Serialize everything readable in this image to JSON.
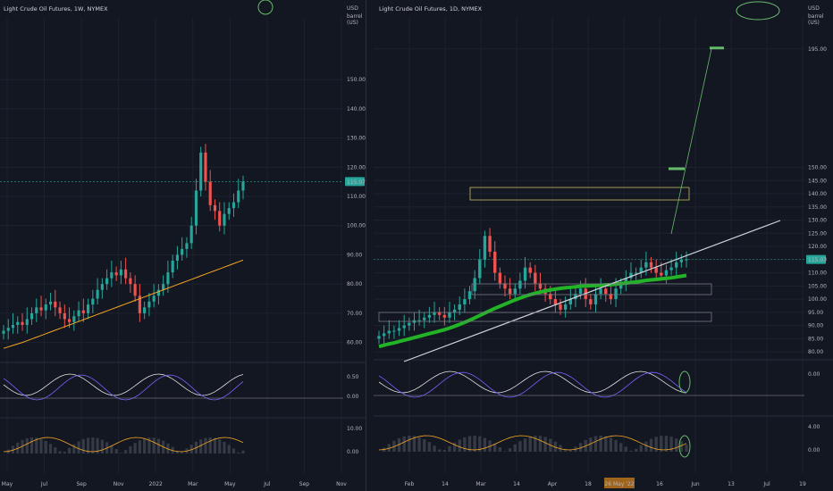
{
  "colors": {
    "background": "#131722",
    "grid": "#1e222d",
    "up": "#26a69a",
    "down": "#ef5350",
    "ma": "#f5a623",
    "trend_ma": "#22b326",
    "annotation_green": "#66bb6a",
    "price_tag": "#26a69a",
    "zone": "#c9b860",
    "macd": "#e0e0e0",
    "signal": "#7b61ff"
  },
  "left": {
    "title": "Light Crude Oil Futures, 1W, NYMEX",
    "currency": "USD",
    "unit": "barrel (US)",
    "price_tag": "115.07"
  },
  "right": {
    "title": "Light Crude Oil Futures, 1D, NYMEX",
    "currency": "USD",
    "unit": "barrel (US)",
    "price_tag": "115.07",
    "date_highlight": "26 May '22"
  },
  "chart_data": [
    {
      "type": "candlestick",
      "interval": "1W",
      "ylim": [
        55,
        165
      ],
      "y_ticks": [
        "150.00",
        "140.00",
        "130.00",
        "120.00",
        "110.00",
        "100.00",
        "90.00",
        "80.00",
        "70.00",
        "60.00"
      ],
      "y_tick_values": [
        150,
        140,
        130,
        120,
        110,
        100,
        90,
        80,
        70,
        60
      ],
      "x_ticks": [
        "May",
        "Jul",
        "Sep",
        "Nov",
        "2022",
        "Mar",
        "May",
        "Jul",
        "Sep",
        "Nov"
      ],
      "last_price": 115.07,
      "closes": [
        64,
        65,
        66,
        67,
        66,
        68,
        70,
        72,
        71,
        73,
        74,
        72,
        70,
        68,
        67,
        69,
        71,
        70,
        73,
        75,
        78,
        80,
        82,
        84,
        83,
        85,
        82,
        80,
        76,
        70,
        72,
        74,
        76,
        78,
        80,
        84,
        88,
        90,
        92,
        94,
        100,
        112,
        125,
        115,
        107,
        105,
        100,
        104,
        106,
        108,
        112,
        115.07
      ],
      "ma": [
        58,
        58.5,
        59,
        59.5,
        60,
        60.6,
        61.2,
        61.8,
        62.4,
        63,
        63.6,
        64.2,
        64.8,
        65.4,
        66,
        66.6,
        67.2,
        67.8,
        68.4,
        69,
        69.6,
        70.2,
        70.8,
        71.4,
        72,
        72.6,
        73.2,
        73.8,
        74.4,
        75,
        75.6,
        76.2,
        76.8,
        77.4,
        78,
        78.6,
        79.2,
        79.8,
        80.4,
        81,
        81.6,
        82.2,
        82.8,
        83.4,
        84,
        84.6,
        85.2,
        85.8,
        86.4,
        87,
        87.6,
        88.2
      ],
      "osc1_ticks": [
        "0.50",
        "0.00"
      ],
      "osc2_ticks": [
        "10.00",
        "0.00"
      ]
    },
    {
      "type": "candlestick",
      "interval": "1D",
      "ylim": [
        78,
        200
      ],
      "y_ticks": [
        "195.00",
        "150.00",
        "145.00",
        "140.00",
        "135.00",
        "130.00",
        "125.00",
        "120.00",
        "115.00",
        "110.00",
        "105.00",
        "100.00",
        "95.00",
        "90.00",
        "85.00",
        "80.00"
      ],
      "y_tick_values": [
        195,
        150,
        145,
        140,
        135,
        130,
        125,
        120,
        115,
        110,
        105,
        100,
        95,
        90,
        85,
        80
      ],
      "x_ticks": [
        "Feb",
        "14",
        "Mar",
        "14",
        "Apr",
        "18",
        "May",
        "16",
        "Jun",
        "13",
        "Jul",
        "19"
      ],
      "last_price": 115.07,
      "target_price": 195,
      "closes": [
        86,
        87,
        88,
        88,
        89,
        90,
        91,
        92,
        92,
        93,
        94,
        95,
        94,
        93,
        95,
        96,
        98,
        100,
        103,
        108,
        115,
        124,
        118,
        110,
        106,
        104,
        102,
        104,
        107,
        112,
        110,
        106,
        104,
        102,
        100,
        98,
        96,
        98,
        100,
        102,
        104,
        100,
        98,
        102,
        104,
        102,
        100,
        104,
        106,
        108,
        110,
        110,
        112,
        114,
        112,
        110,
        109,
        111,
        112,
        114,
        115,
        115.07
      ],
      "ema": [
        82,
        82.5,
        83,
        83.4,
        83.9,
        84.4,
        84.9,
        85.4,
        85.9,
        86.4,
        86.9,
        87.4,
        87.9,
        88.4,
        89,
        89.7,
        90.4,
        91.2,
        92,
        92.9,
        93.8,
        94.7,
        95.6,
        96.5,
        97.3,
        98.1,
        98.9,
        99.7,
        100.4,
        101.1,
        101.7,
        102.2,
        102.7,
        103.1,
        103.5,
        103.8,
        104.1,
        104.3,
        104.5,
        104.7,
        104.9,
        105,
        105.1,
        105.2,
        105.3,
        105.4,
        105.5,
        105.7,
        105.9,
        106.1,
        106.3,
        106.5,
        106.8,
        107.1,
        107.3,
        107.5,
        107.7,
        107.9,
        108.1,
        108.4,
        108.7,
        109
      ],
      "osc1_ticks": [
        "0.00"
      ],
      "osc2_ticks": [
        "4.00",
        "0.00"
      ]
    }
  ]
}
